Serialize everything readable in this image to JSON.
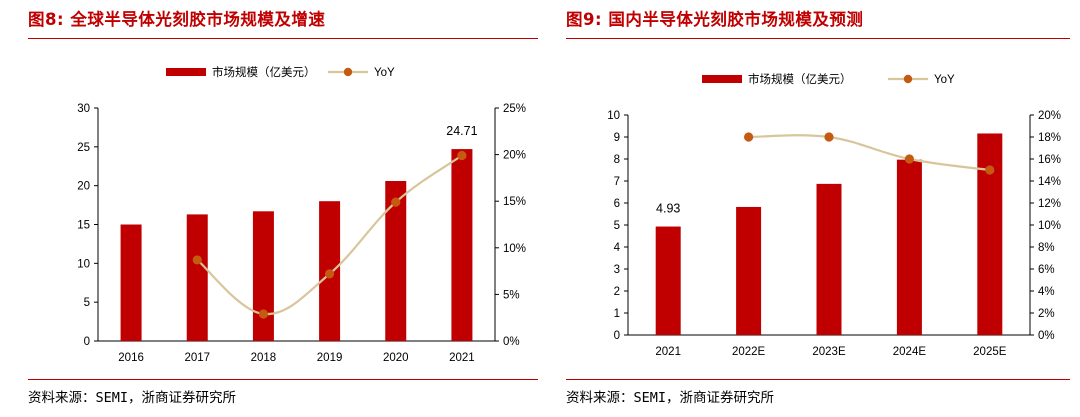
{
  "panels": [
    {
      "figure_title": "图8:  全球半导体光刻胶市场规模及增速",
      "source": "资料来源：SEMI，浙商证券研究所"
    },
    {
      "figure_title": "图9:  国内半导体光刻胶市场规模及预测",
      "source": "资料来源：SEMI，浙商证券研究所"
    }
  ],
  "chart_data": [
    {
      "type": "bar",
      "categories": [
        "2016",
        "2017",
        "2018",
        "2019",
        "2020",
        "2021"
      ],
      "series": [
        {
          "name": "市场规模（亿美元）",
          "type": "bar",
          "axis": "left",
          "color": "#c00000",
          "values": [
            15.0,
            16.3,
            16.7,
            18.0,
            20.6,
            24.71
          ]
        },
        {
          "name": "YoY",
          "type": "line",
          "axis": "right",
          "color": "#d9c59b",
          "marker_color": "#c55a11",
          "values": [
            null,
            8.7,
            2.9,
            7.2,
            14.9,
            19.9
          ]
        }
      ],
      "data_labels": [
        {
          "category": "2021",
          "text": "24.71"
        }
      ],
      "ylim": [
        0,
        30
      ],
      "yticks": [
        0,
        5,
        10,
        15,
        20,
        25,
        30
      ],
      "y2lim": [
        0,
        25
      ],
      "y2ticks": [
        "0%",
        "5%",
        "10%",
        "15%",
        "20%",
        "25%"
      ],
      "legend": "top-center",
      "grid": false
    },
    {
      "type": "bar",
      "categories": [
        "2021",
        "2022E",
        "2023E",
        "2024E",
        "2025E"
      ],
      "series": [
        {
          "name": "市场规模（亿美元）",
          "type": "bar",
          "axis": "left",
          "color": "#c00000",
          "values": [
            4.93,
            5.82,
            6.87,
            7.97,
            9.16
          ]
        },
        {
          "name": "YoY",
          "type": "line",
          "axis": "right",
          "color": "#d9c59b",
          "marker_color": "#c55a11",
          "values": [
            null,
            18.0,
            18.0,
            16.0,
            15.0
          ]
        }
      ],
      "data_labels": [
        {
          "category": "2021",
          "text": "4.93"
        }
      ],
      "ylim": [
        0,
        10
      ],
      "yticks": [
        0,
        1,
        2,
        3,
        4,
        5,
        6,
        7,
        8,
        9,
        10
      ],
      "y2lim": [
        0,
        20
      ],
      "y2ticks": [
        "0%",
        "2%",
        "4%",
        "6%",
        "8%",
        "10%",
        "12%",
        "14%",
        "16%",
        "18%",
        "20%"
      ],
      "legend": "top-center",
      "grid": false
    }
  ]
}
